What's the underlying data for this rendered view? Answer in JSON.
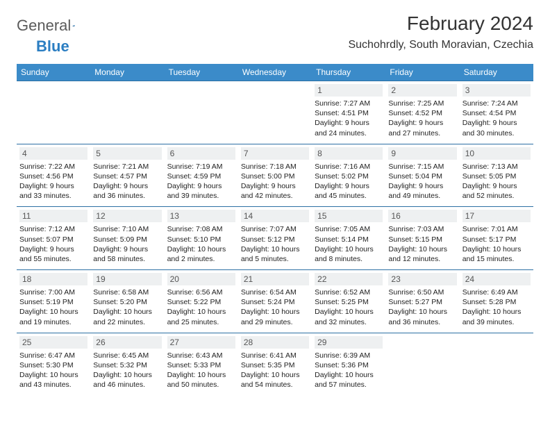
{
  "logo": {
    "text1": "General",
    "text2": "Blue"
  },
  "header": {
    "month_title": "February 2024",
    "location": "Suchohrdly, South Moravian, Czechia"
  },
  "colors": {
    "header_bg": "#3b8bc9",
    "header_text": "#ffffff",
    "daynum_bg": "#eef0f1",
    "daynum_text": "#555555",
    "border": "#2b6fa3",
    "logo_gray": "#5a5a5a",
    "logo_blue": "#2b7ec2",
    "body_text": "#222222",
    "background": "#ffffff"
  },
  "day_names": [
    "Sunday",
    "Monday",
    "Tuesday",
    "Wednesday",
    "Thursday",
    "Friday",
    "Saturday"
  ],
  "weeks": [
    [
      null,
      null,
      null,
      null,
      {
        "n": "1",
        "sunrise": "Sunrise: 7:27 AM",
        "sunset": "Sunset: 4:51 PM",
        "day1": "Daylight: 9 hours",
        "day2": "and 24 minutes."
      },
      {
        "n": "2",
        "sunrise": "Sunrise: 7:25 AM",
        "sunset": "Sunset: 4:52 PM",
        "day1": "Daylight: 9 hours",
        "day2": "and 27 minutes."
      },
      {
        "n": "3",
        "sunrise": "Sunrise: 7:24 AM",
        "sunset": "Sunset: 4:54 PM",
        "day1": "Daylight: 9 hours",
        "day2": "and 30 minutes."
      }
    ],
    [
      {
        "n": "4",
        "sunrise": "Sunrise: 7:22 AM",
        "sunset": "Sunset: 4:56 PM",
        "day1": "Daylight: 9 hours",
        "day2": "and 33 minutes."
      },
      {
        "n": "5",
        "sunrise": "Sunrise: 7:21 AM",
        "sunset": "Sunset: 4:57 PM",
        "day1": "Daylight: 9 hours",
        "day2": "and 36 minutes."
      },
      {
        "n": "6",
        "sunrise": "Sunrise: 7:19 AM",
        "sunset": "Sunset: 4:59 PM",
        "day1": "Daylight: 9 hours",
        "day2": "and 39 minutes."
      },
      {
        "n": "7",
        "sunrise": "Sunrise: 7:18 AM",
        "sunset": "Sunset: 5:00 PM",
        "day1": "Daylight: 9 hours",
        "day2": "and 42 minutes."
      },
      {
        "n": "8",
        "sunrise": "Sunrise: 7:16 AM",
        "sunset": "Sunset: 5:02 PM",
        "day1": "Daylight: 9 hours",
        "day2": "and 45 minutes."
      },
      {
        "n": "9",
        "sunrise": "Sunrise: 7:15 AM",
        "sunset": "Sunset: 5:04 PM",
        "day1": "Daylight: 9 hours",
        "day2": "and 49 minutes."
      },
      {
        "n": "10",
        "sunrise": "Sunrise: 7:13 AM",
        "sunset": "Sunset: 5:05 PM",
        "day1": "Daylight: 9 hours",
        "day2": "and 52 minutes."
      }
    ],
    [
      {
        "n": "11",
        "sunrise": "Sunrise: 7:12 AM",
        "sunset": "Sunset: 5:07 PM",
        "day1": "Daylight: 9 hours",
        "day2": "and 55 minutes."
      },
      {
        "n": "12",
        "sunrise": "Sunrise: 7:10 AM",
        "sunset": "Sunset: 5:09 PM",
        "day1": "Daylight: 9 hours",
        "day2": "and 58 minutes."
      },
      {
        "n": "13",
        "sunrise": "Sunrise: 7:08 AM",
        "sunset": "Sunset: 5:10 PM",
        "day1": "Daylight: 10 hours",
        "day2": "and 2 minutes."
      },
      {
        "n": "14",
        "sunrise": "Sunrise: 7:07 AM",
        "sunset": "Sunset: 5:12 PM",
        "day1": "Daylight: 10 hours",
        "day2": "and 5 minutes."
      },
      {
        "n": "15",
        "sunrise": "Sunrise: 7:05 AM",
        "sunset": "Sunset: 5:14 PM",
        "day1": "Daylight: 10 hours",
        "day2": "and 8 minutes."
      },
      {
        "n": "16",
        "sunrise": "Sunrise: 7:03 AM",
        "sunset": "Sunset: 5:15 PM",
        "day1": "Daylight: 10 hours",
        "day2": "and 12 minutes."
      },
      {
        "n": "17",
        "sunrise": "Sunrise: 7:01 AM",
        "sunset": "Sunset: 5:17 PM",
        "day1": "Daylight: 10 hours",
        "day2": "and 15 minutes."
      }
    ],
    [
      {
        "n": "18",
        "sunrise": "Sunrise: 7:00 AM",
        "sunset": "Sunset: 5:19 PM",
        "day1": "Daylight: 10 hours",
        "day2": "and 19 minutes."
      },
      {
        "n": "19",
        "sunrise": "Sunrise: 6:58 AM",
        "sunset": "Sunset: 5:20 PM",
        "day1": "Daylight: 10 hours",
        "day2": "and 22 minutes."
      },
      {
        "n": "20",
        "sunrise": "Sunrise: 6:56 AM",
        "sunset": "Sunset: 5:22 PM",
        "day1": "Daylight: 10 hours",
        "day2": "and 25 minutes."
      },
      {
        "n": "21",
        "sunrise": "Sunrise: 6:54 AM",
        "sunset": "Sunset: 5:24 PM",
        "day1": "Daylight: 10 hours",
        "day2": "and 29 minutes."
      },
      {
        "n": "22",
        "sunrise": "Sunrise: 6:52 AM",
        "sunset": "Sunset: 5:25 PM",
        "day1": "Daylight: 10 hours",
        "day2": "and 32 minutes."
      },
      {
        "n": "23",
        "sunrise": "Sunrise: 6:50 AM",
        "sunset": "Sunset: 5:27 PM",
        "day1": "Daylight: 10 hours",
        "day2": "and 36 minutes."
      },
      {
        "n": "24",
        "sunrise": "Sunrise: 6:49 AM",
        "sunset": "Sunset: 5:28 PM",
        "day1": "Daylight: 10 hours",
        "day2": "and 39 minutes."
      }
    ],
    [
      {
        "n": "25",
        "sunrise": "Sunrise: 6:47 AM",
        "sunset": "Sunset: 5:30 PM",
        "day1": "Daylight: 10 hours",
        "day2": "and 43 minutes."
      },
      {
        "n": "26",
        "sunrise": "Sunrise: 6:45 AM",
        "sunset": "Sunset: 5:32 PM",
        "day1": "Daylight: 10 hours",
        "day2": "and 46 minutes."
      },
      {
        "n": "27",
        "sunrise": "Sunrise: 6:43 AM",
        "sunset": "Sunset: 5:33 PM",
        "day1": "Daylight: 10 hours",
        "day2": "and 50 minutes."
      },
      {
        "n": "28",
        "sunrise": "Sunrise: 6:41 AM",
        "sunset": "Sunset: 5:35 PM",
        "day1": "Daylight: 10 hours",
        "day2": "and 54 minutes."
      },
      {
        "n": "29",
        "sunrise": "Sunrise: 6:39 AM",
        "sunset": "Sunset: 5:36 PM",
        "day1": "Daylight: 10 hours",
        "day2": "and 57 minutes."
      },
      null,
      null
    ]
  ]
}
